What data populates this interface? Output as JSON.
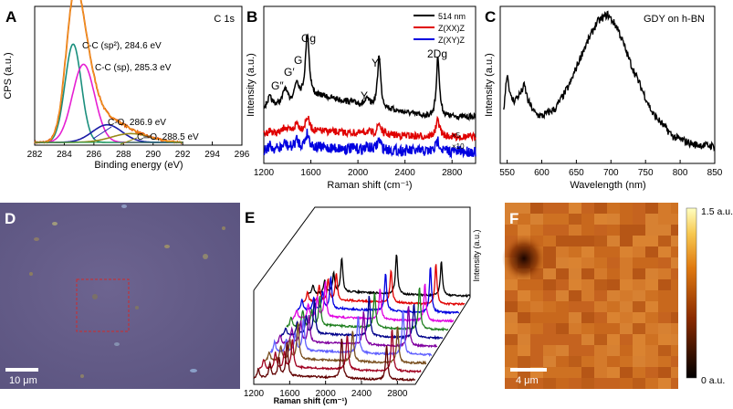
{
  "panels": {
    "A": {
      "letter": "A",
      "corner_label": "C 1s",
      "ylabel": "CPS (a.u.)",
      "xlabel": "Binding energy (eV)",
      "xticks": [
        282,
        284,
        286,
        288,
        290,
        292,
        294,
        296
      ],
      "annotations": [
        {
          "text": "C-C (sp²), 284.6 eV",
          "color": "#1a8f7d"
        },
        {
          "text": "C-C (sp), 285.3 eV",
          "color": "#e61fd2"
        },
        {
          "text": "C-O, 286.9 eV",
          "color": "#1a1aa6"
        },
        {
          "text": "C═O, 288.5 eV",
          "color": "#9a8a1a"
        }
      ]
    },
    "B": {
      "letter": "B",
      "ylabel": "Intensity (a.u.)",
      "xlabel": "Raman shift (cm⁻¹)",
      "xticks": [
        1200,
        1600,
        2000,
        2400,
        2800
      ],
      "peak_labels": [
        "G″",
        "G′",
        "G",
        "Gg",
        "Y",
        "Y′",
        "2Dg"
      ],
      "scale_labels": [
        "×5",
        "×10"
      ],
      "legend": [
        {
          "label": "514 nm",
          "color": "#000000"
        },
        {
          "label": "Z(XX)Z",
          "color": "#e00000"
        },
        {
          "label": "Z(XY)Z",
          "color": "#0000e0"
        }
      ]
    },
    "C": {
      "letter": "C",
      "corner_label": "GDY on h-BN",
      "ylabel": "Intensity (a.u.)",
      "xlabel": "Wavelength (nm)",
      "xticks": [
        550,
        600,
        650,
        700,
        750,
        800,
        850
      ]
    },
    "D": {
      "letter": "D",
      "scalebar": "10 μm"
    },
    "E": {
      "letter": "E",
      "ylabel": "Intensity (a.u.)",
      "xlabel": "Raman shift (cm⁻¹)",
      "xticks": [
        1200,
        1600,
        2000,
        2400,
        2800
      ]
    },
    "F": {
      "letter": "F",
      "scalebar": "4 μm",
      "colorbar_max": "1.5 a.u.",
      "colorbar_min": "0 a.u."
    }
  },
  "chart_data": [
    {
      "panel": "A",
      "type": "line",
      "title": "C 1s",
      "xlabel": "Binding energy (eV)",
      "ylabel": "CPS (a.u.)",
      "xlim": [
        282,
        296
      ],
      "xreverse": false,
      "series": [
        {
          "name": "C-C (sp2)",
          "center": 284.6,
          "height": 0.78,
          "width": 0.55,
          "color": "#1a8f7d"
        },
        {
          "name": "C-C (sp)",
          "center": 285.3,
          "height": 0.62,
          "width": 0.75,
          "color": "#e61fd2"
        },
        {
          "name": "C-O",
          "center": 286.9,
          "height": 0.14,
          "width": 1.0,
          "color": "#1a1aa6"
        },
        {
          "name": "C=O",
          "center": 288.5,
          "height": 0.07,
          "width": 1.3,
          "color": "#9a8a1a"
        }
      ]
    },
    {
      "panel": "B",
      "type": "line",
      "xlabel": "Raman shift (cm-1)",
      "ylabel": "Intensity (a.u.)",
      "xlim": [
        1200,
        3000
      ],
      "peaks": [
        1250,
        1380,
        1480,
        1570,
        2080,
        2180,
        2680
      ],
      "series": [
        {
          "name": "514 nm",
          "color": "#000000"
        },
        {
          "name": "Z(XX)Z",
          "color": "#e00000",
          "scale": 5
        },
        {
          "name": "Z(XY)Z",
          "color": "#0000e0",
          "scale": 10
        }
      ]
    },
    {
      "panel": "C",
      "type": "line",
      "xlabel": "Wavelength (nm)",
      "ylabel": "Intensity (a.u.)",
      "xlim": [
        540,
        850
      ],
      "x": [
        545,
        550,
        555,
        560,
        570,
        575,
        580,
        590,
        600,
        620,
        640,
        660,
        680,
        695,
        710,
        730,
        760,
        790,
        820,
        850
      ],
      "y": [
        0.35,
        0.58,
        0.42,
        0.4,
        0.45,
        0.5,
        0.4,
        0.32,
        0.3,
        0.35,
        0.5,
        0.72,
        0.9,
        0.95,
        0.86,
        0.62,
        0.32,
        0.17,
        0.12,
        0.11
      ]
    },
    {
      "panel": "E",
      "type": "line",
      "xlabel": "Raman shift (cm-1)",
      "ylabel": "Intensity (a.u.)",
      "xlim": [
        1200,
        3000
      ],
      "series": [
        {
          "color": "#000000"
        },
        {
          "color": "#e00000"
        },
        {
          "color": "#0000e0"
        },
        {
          "color": "#e000e0"
        },
        {
          "color": "#208020"
        },
        {
          "color": "#00008a"
        },
        {
          "color": "#8000a0"
        },
        {
          "color": "#6060ff"
        },
        {
          "color": "#7a5020"
        },
        {
          "color": "#a00020"
        },
        {
          "color": "#600000"
        }
      ]
    }
  ]
}
